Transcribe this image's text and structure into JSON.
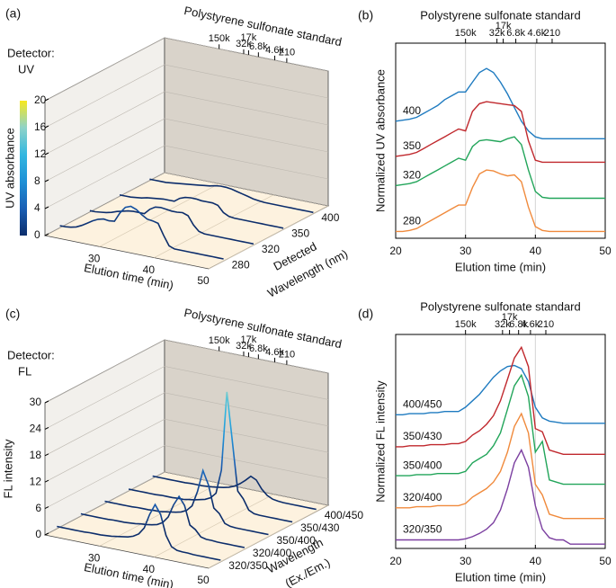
{
  "chart_data": [
    {
      "type": "waterfall3d",
      "panel": "(a)",
      "detector": [
        "Detector:",
        "UV"
      ],
      "title": "Polystyrene sulfonate standard",
      "top_ticks": [
        {
          "value": 30,
          "label": "150k"
        },
        {
          "value": 34.5,
          "label": "32k"
        },
        {
          "value": 35.4,
          "label": "17k"
        },
        {
          "value": 37.2,
          "label": "6.8k"
        },
        {
          "value": 40.2,
          "label": "4.6k"
        },
        {
          "value": 42.4,
          "label": "210"
        }
      ],
      "x_label": "Elution time (min)",
      "y_label": [
        "Detected",
        "Wavelength (nm)"
      ],
      "z_label": "UV absorbance",
      "x": [
        20,
        21,
        22,
        23,
        24,
        25,
        26,
        27,
        28,
        29,
        30,
        31,
        32,
        33,
        34,
        35,
        36,
        37,
        38,
        39,
        40,
        41,
        42,
        43,
        44,
        45,
        46,
        47,
        48,
        49,
        50
      ],
      "xlim": [
        20,
        50
      ],
      "xticks": [
        30,
        40,
        50
      ],
      "zlim": [
        0,
        20
      ],
      "zticks": [
        0,
        4,
        8,
        12,
        16,
        20
      ],
      "colorbar": true,
      "colormap": [
        "#0c2d6b",
        "#1a5fb4",
        "#1e90d6",
        "#33b7e0",
        "#8fd3c8",
        "#f7e81e"
      ],
      "series": [
        {
          "name": "280",
          "values": [
            0.3,
            0.3,
            0.4,
            0.6,
            1.0,
            1.5,
            2.0,
            2.4,
            2.6,
            2.5,
            2.6,
            4.0,
            5.0,
            5.3,
            5.0,
            4.4,
            3.9,
            3.8,
            3.6,
            2.0,
            0.6,
            0.3,
            0.3,
            0.3,
            0.3,
            0.3,
            0.3,
            0.3,
            0.3,
            0.3,
            0.3
          ]
        },
        {
          "name": "320",
          "values": [
            0.2,
            0.2,
            0.3,
            0.4,
            0.6,
            0.9,
            1.1,
            1.3,
            1.4,
            1.4,
            1.4,
            2.2,
            2.7,
            2.8,
            2.7,
            2.6,
            2.6,
            2.7,
            2.4,
            1.2,
            0.4,
            0.2,
            0.2,
            0.2,
            0.2,
            0.2,
            0.2,
            0.2,
            0.2,
            0.2,
            0.2
          ]
        },
        {
          "name": "350",
          "values": [
            0.2,
            0.2,
            0.2,
            0.3,
            0.4,
            0.6,
            0.7,
            0.8,
            0.9,
            0.9,
            0.9,
            1.5,
            1.8,
            1.9,
            1.9,
            1.8,
            1.8,
            1.8,
            1.6,
            0.7,
            0.3,
            0.2,
            0.2,
            0.2,
            0.2,
            0.2,
            0.2,
            0.2,
            0.2,
            0.2,
            0.2
          ]
        },
        {
          "name": "400",
          "values": [
            0.2,
            0.2,
            0.2,
            0.2,
            0.3,
            0.4,
            0.5,
            0.6,
            0.7,
            0.8,
            0.9,
            1.0,
            1.2,
            1.3,
            1.3,
            1.2,
            1.0,
            0.8,
            0.6,
            0.4,
            0.3,
            0.2,
            0.2,
            0.2,
            0.2,
            0.2,
            0.2,
            0.2,
            0.2,
            0.2,
            0.2
          ]
        }
      ]
    },
    {
      "type": "line",
      "panel": "(b)",
      "title": "Polystyrene sulfonate standard",
      "top_ticks": [
        {
          "value": 30,
          "label": "150k"
        },
        {
          "value": 34.5,
          "label": "32k"
        },
        {
          "value": 35.4,
          "label": "17k"
        },
        {
          "value": 37.2,
          "label": "6.8k"
        },
        {
          "value": 40.2,
          "label": "4.6k"
        },
        {
          "value": 42.4,
          "label": "210"
        }
      ],
      "x_label": "Elution time (min)",
      "y_label": "Normalized UV absorbance",
      "x": [
        20,
        21,
        22,
        23,
        24,
        25,
        26,
        27,
        28,
        29,
        30,
        31,
        32,
        33,
        34,
        35,
        36,
        37,
        38,
        39,
        40,
        41,
        42,
        43,
        44,
        45,
        46,
        47,
        48,
        49,
        50
      ],
      "xlim": [
        20,
        50
      ],
      "xticks": [
        20,
        30,
        40,
        50
      ],
      "ylim": [
        0,
        10
      ],
      "grid": true,
      "series": [
        {
          "name": "400",
          "color": "#1f7bc0",
          "values": [
            6.0,
            6.05,
            6.1,
            6.2,
            6.4,
            6.6,
            6.8,
            7.1,
            7.3,
            7.5,
            7.5,
            8.0,
            8.5,
            8.7,
            8.5,
            8.0,
            7.4,
            6.7,
            6.0,
            5.5,
            5.2,
            5.1,
            5.1,
            5.1,
            5.1,
            5.1,
            5.1,
            5.1,
            5.1,
            5.1,
            5.1
          ]
        },
        {
          "name": "350",
          "color": "#c0282d",
          "values": [
            4.2,
            4.25,
            4.3,
            4.4,
            4.6,
            4.8,
            5.0,
            5.2,
            5.4,
            5.6,
            5.5,
            6.5,
            6.9,
            7.0,
            6.95,
            6.9,
            6.85,
            6.8,
            6.5,
            5.0,
            4.0,
            3.9,
            3.9,
            3.9,
            3.9,
            3.9,
            3.9,
            3.9,
            3.9,
            3.9,
            3.9
          ]
        },
        {
          "name": "320",
          "color": "#22a55a",
          "values": [
            2.7,
            2.75,
            2.8,
            2.9,
            3.1,
            3.3,
            3.5,
            3.7,
            3.9,
            4.1,
            4.0,
            4.7,
            5.0,
            5.05,
            5.0,
            4.95,
            5.1,
            5.2,
            4.8,
            3.5,
            2.4,
            2.1,
            2.05,
            2.05,
            2.05,
            2.05,
            2.05,
            2.05,
            2.05,
            2.05,
            2.05
          ]
        },
        {
          "name": "280",
          "color": "#f08a3c",
          "values": [
            0.35,
            0.35,
            0.4,
            0.5,
            0.7,
            0.9,
            1.1,
            1.3,
            1.5,
            1.7,
            1.7,
            2.6,
            3.3,
            3.5,
            3.45,
            3.3,
            3.2,
            3.25,
            2.9,
            1.6,
            0.6,
            0.4,
            0.35,
            0.35,
            0.35,
            0.35,
            0.35,
            0.35,
            0.35,
            0.35,
            0.35
          ]
        }
      ]
    },
    {
      "type": "waterfall3d",
      "panel": "(c)",
      "detector": [
        "Detector:",
        "FL"
      ],
      "title": "Polystyrene sulfonate standard",
      "top_ticks": [
        {
          "value": 30,
          "label": "150k"
        },
        {
          "value": 34.5,
          "label": "32k"
        },
        {
          "value": 35.4,
          "label": "17k"
        },
        {
          "value": 37.2,
          "label": "6.8k"
        },
        {
          "value": 40.2,
          "label": "4.6k"
        },
        {
          "value": 42.4,
          "label": "210"
        }
      ],
      "x_label": "Elution time (min)",
      "y_label": [
        "Wavelength",
        "(Ex./Em.)"
      ],
      "z_label": "FL intensity",
      "x": [
        20,
        21,
        22,
        23,
        24,
        25,
        26,
        27,
        28,
        29,
        30,
        31,
        32,
        33,
        34,
        35,
        36,
        37,
        38,
        39,
        40,
        41,
        42,
        43,
        44,
        45,
        46,
        47,
        48,
        49,
        50
      ],
      "xlim": [
        20,
        50
      ],
      "xticks": [
        30,
        40,
        50
      ],
      "zlim": [
        0,
        30
      ],
      "zticks": [
        0,
        6,
        12,
        18,
        24,
        30
      ],
      "colorbar": false,
      "colormap": [
        "#0c2d6b",
        "#1a5fb4",
        "#1e90d6",
        "#33b7e0",
        "#8fd3c8",
        "#f7e81e"
      ],
      "series": [
        {
          "name": "320/350",
          "values": [
            0.5,
            0.5,
            0.5,
            0.5,
            0.5,
            0.5,
            0.6,
            0.6,
            0.6,
            0.7,
            0.8,
            1.0,
            1.2,
            1.4,
            1.8,
            2.6,
            4.2,
            7.5,
            10,
            8,
            3.5,
            1.2,
            0.6,
            0.5,
            0.5,
            0.4,
            0.4,
            0.4,
            0.4,
            0.4,
            0.4
          ]
        },
        {
          "name": "320/400",
          "values": [
            0.5,
            0.5,
            0.5,
            0.5,
            0.5,
            0.5,
            0.6,
            0.6,
            0.6,
            0.7,
            0.8,
            1.0,
            1.1,
            1.3,
            1.6,
            2.3,
            3.8,
            6.8,
            9,
            7.2,
            3.0,
            2.2,
            0.8,
            0.5,
            0.5,
            0.4,
            0.4,
            0.4,
            0.4,
            0.4,
            0.4
          ]
        },
        {
          "name": "350/400",
          "values": [
            0.5,
            0.5,
            0.5,
            0.5,
            0.5,
            0.5,
            0.6,
            0.6,
            0.6,
            0.7,
            0.7,
            0.9,
            1.1,
            1.3,
            1.6,
            2.2,
            3.5,
            7,
            12,
            9,
            4,
            3,
            1.0,
            0.6,
            0.5,
            0.5,
            0.5,
            0.5,
            0.5,
            0.5,
            0.5
          ]
        },
        {
          "name": "350/430",
          "values": [
            0.4,
            0.4,
            0.4,
            0.4,
            0.4,
            0.4,
            0.5,
            0.5,
            0.5,
            0.6,
            0.6,
            0.8,
            1.0,
            1.3,
            1.6,
            2.2,
            3.5,
            9,
            27,
            16,
            5,
            3.5,
            1.2,
            0.6,
            0.5,
            0.5,
            0.5,
            0.5,
            0.5,
            0.5,
            0.5
          ]
        },
        {
          "name": "400/450",
          "values": [
            0.5,
            0.5,
            0.5,
            0.5,
            0.5,
            0.5,
            0.5,
            0.6,
            0.6,
            0.6,
            0.7,
            0.8,
            1.0,
            1.2,
            1.5,
            2.0,
            2.8,
            3.8,
            5,
            4.4,
            2.6,
            1.4,
            0.8,
            0.6,
            0.5,
            0.5,
            0.5,
            0.5,
            0.5,
            0.5,
            0.5
          ]
        }
      ]
    },
    {
      "type": "line",
      "panel": "(d)",
      "title": "Polystyrene sulfonate standard",
      "top_ticks": [
        {
          "value": 30,
          "label": "150k"
        },
        {
          "value": 35.3,
          "label": "32k"
        },
        {
          "value": 36.3,
          "label": "17k"
        },
        {
          "value": 37.6,
          "label": "6.8k"
        },
        {
          "value": 39.3,
          "label": "4.6k"
        },
        {
          "value": 41.5,
          "label": "210"
        }
      ],
      "x_label": "Elution time (min)",
      "y_label": "Normalized FL intensity",
      "x": [
        20,
        21,
        22,
        23,
        24,
        25,
        26,
        27,
        28,
        29,
        30,
        31,
        32,
        33,
        34,
        35,
        36,
        37,
        38,
        39,
        40,
        41,
        42,
        43,
        44,
        45,
        46,
        47,
        48,
        49,
        50
      ],
      "xlim": [
        20,
        50
      ],
      "xticks": [
        20,
        30,
        40,
        50
      ],
      "ylim": [
        0,
        10
      ],
      "grid": true,
      "series": [
        {
          "name": "400/450",
          "color": "#1f7bc0",
          "values": [
            6.25,
            6.25,
            6.3,
            6.3,
            6.3,
            6.35,
            6.35,
            6.4,
            6.4,
            6.4,
            6.6,
            6.9,
            7.2,
            7.6,
            8.0,
            8.3,
            8.5,
            8.55,
            8.4,
            7.8,
            6.6,
            6.1,
            5.95,
            5.9,
            5.85,
            5.85,
            5.85,
            5.85,
            5.85,
            5.85,
            5.85
          ]
        },
        {
          "name": "350/430",
          "color": "#c0282d",
          "values": [
            4.75,
            4.75,
            4.8,
            4.8,
            4.8,
            4.85,
            4.85,
            4.85,
            4.9,
            4.9,
            5.0,
            5.3,
            5.5,
            5.8,
            6.2,
            6.9,
            7.9,
            8.9,
            9.4,
            8.5,
            5.6,
            5.45,
            4.6,
            4.5,
            4.4,
            4.4,
            4.4,
            4.4,
            4.4,
            4.4,
            4.4
          ]
        },
        {
          "name": "350/400",
          "color": "#22a55a",
          "values": [
            3.4,
            3.4,
            3.4,
            3.45,
            3.45,
            3.45,
            3.5,
            3.5,
            3.5,
            3.5,
            3.6,
            4.0,
            4.2,
            4.4,
            4.8,
            5.4,
            6.5,
            7.6,
            8.1,
            7.1,
            4.5,
            5.0,
            3.2,
            3.1,
            3.0,
            3.0,
            3.0,
            3.0,
            3.0,
            3.0,
            3.0
          ]
        },
        {
          "name": "320/400",
          "color": "#f08a3c",
          "values": [
            1.9,
            1.9,
            1.9,
            1.95,
            1.95,
            1.95,
            2.0,
            2.0,
            2.0,
            2.0,
            2.1,
            2.4,
            2.6,
            2.8,
            3.1,
            3.6,
            4.5,
            5.7,
            6.3,
            5.4,
            3.0,
            2.5,
            1.6,
            1.5,
            1.4,
            1.4,
            1.4,
            1.4,
            1.4,
            1.4,
            1.4
          ]
        },
        {
          "name": "320/350",
          "color": "#7b3fa0",
          "values": [
            0.4,
            0.4,
            0.4,
            0.4,
            0.4,
            0.4,
            0.4,
            0.4,
            0.4,
            0.4,
            0.45,
            0.55,
            0.7,
            0.9,
            1.2,
            1.8,
            2.8,
            4.0,
            4.6,
            3.8,
            2.0,
            0.9,
            0.5,
            0.4,
            0.4,
            0.2,
            0.2,
            0.2,
            0.2,
            0.2,
            0.2
          ]
        }
      ]
    }
  ]
}
